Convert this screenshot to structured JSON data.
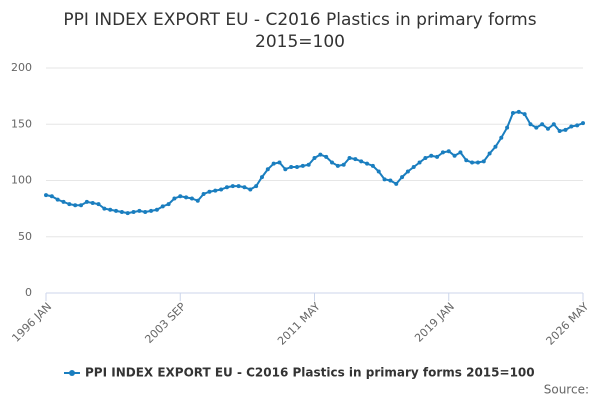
{
  "chart_data": {
    "type": "line",
    "title": [
      "PPI INDEX EXPORT EU - C2016 Plastics in primary forms",
      "2015=100"
    ],
    "categories": [
      "1996 JAN",
      null,
      null,
      null,
      null,
      null,
      null,
      null,
      null,
      null,
      null,
      null,
      null,
      null,
      null,
      null,
      null,
      null,
      null,
      null,
      null,
      null,
      null,
      "2003 SEP",
      null,
      null,
      null,
      null,
      null,
      null,
      null,
      null,
      null,
      null,
      null,
      null,
      null,
      null,
      null,
      null,
      null,
      null,
      null,
      null,
      null,
      null,
      "2011 MAY",
      null,
      null,
      null,
      null,
      null,
      null,
      null,
      null,
      null,
      null,
      null,
      null,
      null,
      null,
      null,
      null,
      null,
      null,
      null,
      null,
      null,
      null,
      "2019 JAN",
      null,
      null,
      null,
      null,
      null,
      null,
      null,
      null,
      null,
      null,
      null,
      null,
      null,
      null,
      null,
      null,
      null,
      null,
      null,
      null,
      null,
      null,
      "2026 MAY"
    ],
    "series": [
      {
        "name": "PPI INDEX EXPORT EU - C2016 Plastics in primary forms 2015=100",
        "color": "#1a7ebf",
        "values": [
          87,
          86,
          83,
          81,
          79,
          78,
          78,
          81,
          80,
          79,
          75,
          74,
          73,
          72,
          71,
          72,
          73,
          72,
          73,
          74,
          77,
          79,
          84,
          86,
          85,
          84,
          82,
          88,
          90,
          91,
          92,
          94,
          95,
          95,
          94,
          92,
          95,
          103,
          110,
          115,
          116,
          110,
          112,
          112,
          113,
          114,
          120,
          123,
          121,
          116,
          113,
          114,
          120,
          119,
          117,
          115,
          113,
          108,
          101,
          100,
          97,
          103,
          108,
          112,
          116,
          120,
          122,
          121,
          125,
          126,
          122,
          125,
          118,
          116,
          116,
          117,
          124,
          130,
          138,
          147,
          160,
          161,
          159,
          150,
          147,
          150,
          146,
          150,
          144,
          145,
          148,
          149,
          151
        ]
      }
    ],
    "ylim": [
      0,
      200
    ],
    "yticks": [
      0,
      50,
      100,
      150,
      200
    ],
    "grid": true,
    "legend": "bottom",
    "source": "Source:"
  }
}
